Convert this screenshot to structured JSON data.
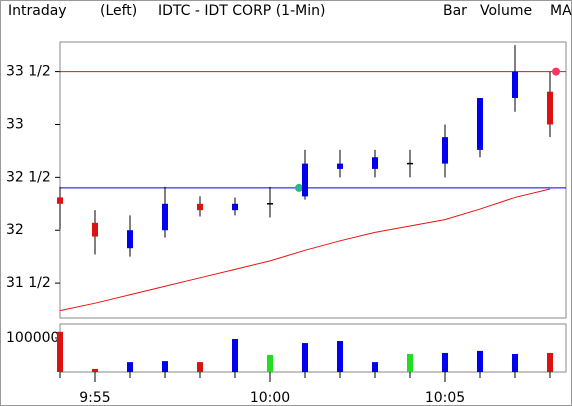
{
  "header": {
    "mode": "Intraday",
    "side": "(Left)",
    "title": "IDTC - IDT CORP (1-Min)",
    "legend": [
      {
        "name": "Bar",
        "color": "#000000"
      },
      {
        "name": "Volume",
        "color": "#22dd22"
      },
      {
        "name": "MA",
        "color": "#ee1111"
      }
    ]
  },
  "chart_data": [
    {
      "type": "candlestick",
      "up_color": "#0000ee",
      "down_color": "#dd1111",
      "doji_color": "#000000",
      "open": [
        32.31,
        32.07,
        31.83,
        32.0,
        32.25,
        32.19,
        32.25,
        32.32,
        32.58,
        32.58,
        32.63,
        32.63,
        32.76,
        33.25,
        33.31
      ],
      "high": [
        32.41,
        32.19,
        32.14,
        32.41,
        32.32,
        32.31,
        32.41,
        32.76,
        32.76,
        32.76,
        32.76,
        33.0,
        33.25,
        33.75,
        33.5
      ],
      "low": [
        32.01,
        31.77,
        31.75,
        31.93,
        32.13,
        32.14,
        32.12,
        32.29,
        32.5,
        32.5,
        32.5,
        32.5,
        32.69,
        33.12,
        32.88
      ],
      "close": [
        32.25,
        31.94,
        32.0,
        32.25,
        32.19,
        32.25,
        32.25,
        32.63,
        32.63,
        32.69,
        32.63,
        32.88,
        33.25,
        33.5,
        33.0
      ],
      "ma_values": [
        31.24,
        31.31,
        31.39,
        31.47,
        31.55,
        31.63,
        31.71,
        31.81,
        31.9,
        31.98,
        32.04,
        32.1,
        32.2,
        32.31,
        32.39
      ],
      "ma_color": "#ee1111",
      "hlines": [
        {
          "value": 33.5,
          "color": "#ee1111"
        },
        {
          "value": 32.4,
          "color": "#0000ee"
        }
      ],
      "ylim": [
        31.17,
        33.78
      ],
      "yticks": [
        {
          "value": 31.5,
          "label": "31 1/2"
        },
        32,
        {
          "value": 32.5,
          "label": "32 1/2"
        },
        33,
        {
          "value": 33.5,
          "label": "33 1/2"
        }
      ]
    },
    {
      "type": "bar",
      "categories": [
        null,
        "9:55",
        null,
        null,
        null,
        null,
        "10:00",
        null,
        null,
        null,
        null,
        "10:05",
        null,
        null,
        null
      ],
      "values": [
        118000,
        9000,
        29000,
        32000,
        29000,
        97000,
        50000,
        85000,
        91000,
        29000,
        53000,
        56000,
        62000,
        53000,
        56000
      ],
      "colors": [
        "#dd1111",
        "#dd1111",
        "#0000ee",
        "#0000ee",
        "#dd1111",
        "#0000ee",
        "#22dd22",
        "#0000ee",
        "#0000ee",
        "#0000ee",
        "#22dd22",
        "#0000ee",
        "#0000ee",
        "#0000ee",
        "#dd1111"
      ],
      "ylim": [
        0,
        141000
      ],
      "yticks": [
        100000
      ]
    }
  ]
}
